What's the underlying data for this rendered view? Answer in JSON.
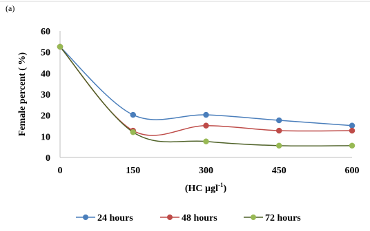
{
  "panel_label": "(a)",
  "chart_data": {
    "type": "line",
    "title": "",
    "xlabel": "(HC µgl",
    "xlabel_sup": "-1",
    "xlabel_close": ")",
    "ylabel": "Female percent ( %)",
    "x": [
      0,
      150,
      300,
      450,
      600
    ],
    "x_tick_labels": [
      "0",
      "150",
      "300",
      "450",
      "600"
    ],
    "y_ticks": [
      0,
      10,
      20,
      30,
      40,
      50,
      60
    ],
    "y_tick_labels": [
      "0",
      "10",
      "20",
      "30",
      "40",
      "50",
      "60"
    ],
    "ylim": [
      0,
      60
    ],
    "grid": false,
    "legend_position": "bottom",
    "series": [
      {
        "name": "24 hours",
        "color": "#4a7ebb",
        "values": [
          52.5,
          20.2,
          20.2,
          17.6,
          15.1
        ]
      },
      {
        "name": "48 hours",
        "color": "#be4b48",
        "values": [
          52.5,
          12.7,
          15.1,
          12.7,
          12.7
        ]
      },
      {
        "name": "72 hours",
        "color": "#98b954",
        "values": [
          52.5,
          12.0,
          7.6,
          5.6,
          5.6
        ]
      }
    ],
    "line_style_color": "#4f6228"
  }
}
